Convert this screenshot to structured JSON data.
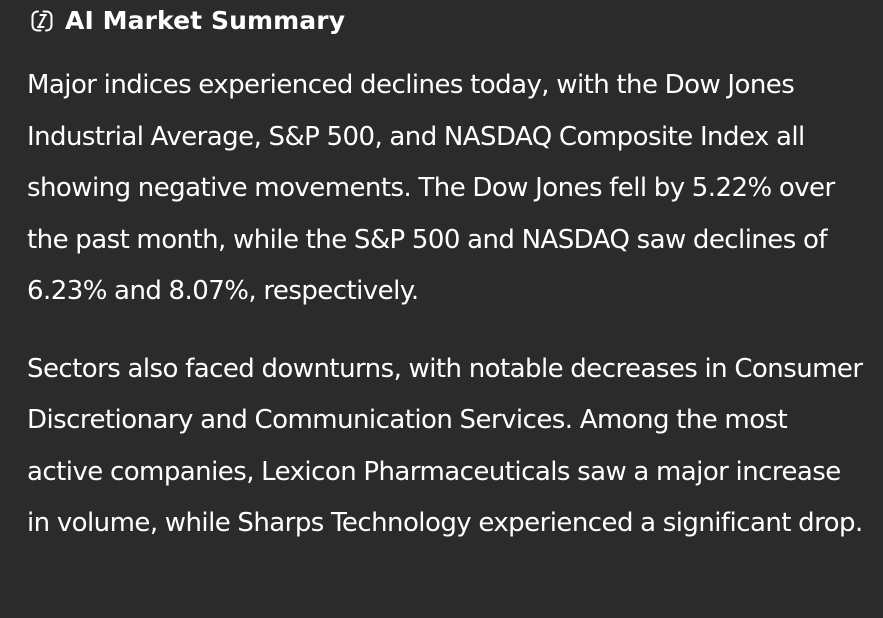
{
  "header": {
    "icon": "ai-sparkle-icon",
    "title": "AI Market Summary"
  },
  "summary": {
    "paragraphs": [
      "Major indices experienced declines today, with the Dow Jones Industrial Average, S&P 500, and NASDAQ Composite Index all showing negative movements. The Dow Jones fell by 5.22% over the past month, while the S&P 500 and NASDAQ saw declines of 6.23% and 8.07%, respectively.",
      "Sectors also faced downturns, with notable decreases in Consumer Discretionary and Communication Services. Among the most active companies, Lexicon Pharmaceuticals saw a major increase in volume, while Sharps Technology experienced a significant drop."
    ]
  },
  "colors": {
    "background": "#2b2b2b",
    "text": "#ffffff"
  }
}
